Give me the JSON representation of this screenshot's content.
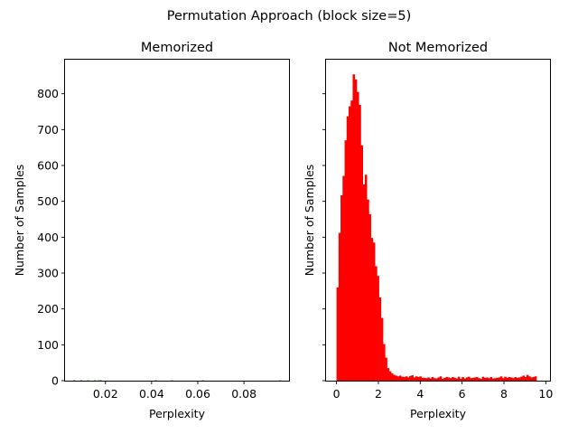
{
  "figure": {
    "suptitle": "Permutation Approach (block size=5)"
  },
  "chart_data": [
    {
      "type": "bar",
      "title": "Memorized",
      "xlabel": "Perplexity",
      "ylabel": "Number of Samples",
      "xlim": [
        0.0025,
        0.0995
      ],
      "ylim": [
        0,
        895
      ],
      "xticks": [
        0.02,
        0.04,
        0.06,
        0.08
      ],
      "xtick_labels": [
        "0.02",
        "0.04",
        "0.06",
        "0.08"
      ],
      "yticks": [
        0,
        100,
        200,
        300,
        400,
        500,
        600,
        700,
        800
      ],
      "ytick_labels": [
        "0",
        "100",
        "200",
        "300",
        "400",
        "500",
        "600",
        "700",
        "800"
      ],
      "color": "#008000",
      "bin_width": 0.0008,
      "bins_x": [
        0.0065,
        0.0095,
        0.0125,
        0.0155,
        0.0172,
        0.018,
        0.0418,
        0.0488,
        0.0622,
        0.0957
      ],
      "values": [
        1,
        1,
        1,
        1,
        1,
        1,
        1,
        1,
        1,
        1
      ]
    },
    {
      "type": "bar",
      "title": "Not Memorized",
      "xlabel": "Perplexity",
      "ylabel": "Number of Samples",
      "xlim": [
        -0.5,
        10.2
      ],
      "ylim": [
        0,
        895
      ],
      "xticks": [
        0,
        2,
        4,
        6,
        8,
        10
      ],
      "xtick_labels": [
        "0",
        "2",
        "4",
        "6",
        "8",
        "10"
      ],
      "yticks": [
        0,
        100,
        200,
        300,
        400,
        500,
        600,
        700,
        800
      ],
      "ytick_labels": [],
      "color": "#ff0000",
      "bin_start": 0.0,
      "bin_width": 0.0965,
      "values": [
        260,
        412,
        517,
        571,
        670,
        737,
        765,
        781,
        854,
        840,
        805,
        769,
        656,
        547,
        574,
        505,
        464,
        398,
        385,
        319,
        292,
        232,
        175,
        102,
        64,
        35,
        26,
        20,
        16,
        14,
        12,
        14,
        11,
        10,
        12,
        9,
        13,
        15,
        9,
        12,
        10,
        12,
        8,
        8,
        7,
        9,
        6,
        10,
        7,
        6,
        9,
        12,
        5,
        8,
        10,
        9,
        7,
        10,
        8,
        6,
        11,
        5,
        10,
        6,
        9,
        11,
        7,
        8,
        9,
        10,
        7,
        5,
        11,
        8,
        9,
        7,
        10,
        6,
        7,
        8,
        9,
        12,
        7,
        11,
        8,
        10,
        9,
        7,
        10,
        8,
        9,
        11,
        14,
        10,
        16,
        12,
        9,
        10,
        12
      ]
    }
  ]
}
